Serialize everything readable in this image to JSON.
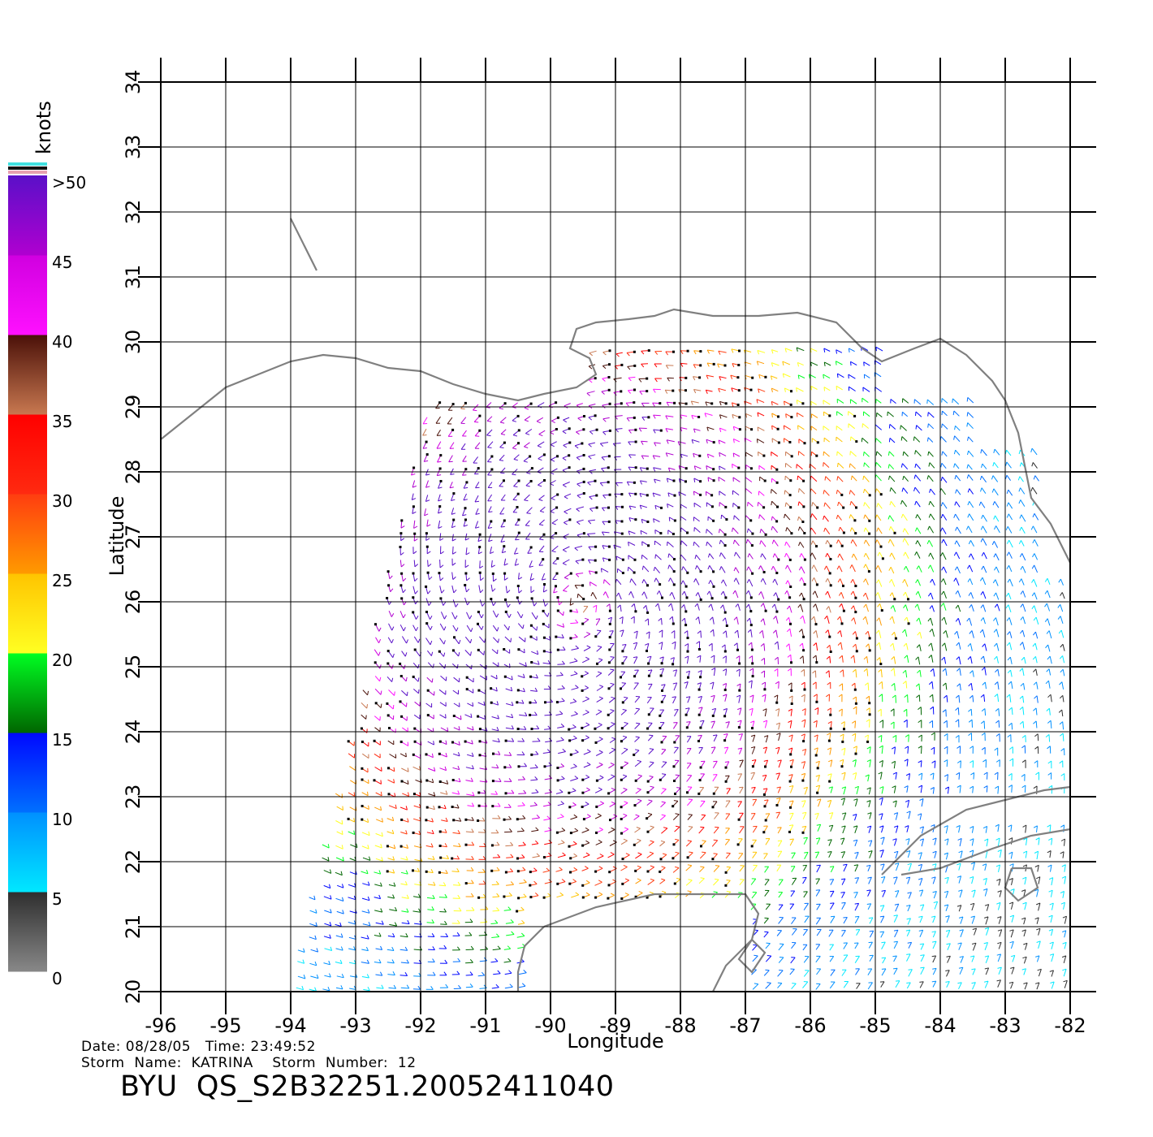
{
  "colorbar": {
    "unit_label": "knots",
    "tick_labels": [
      ">50",
      "45",
      "40",
      "35",
      "30",
      "25",
      "20",
      "15",
      "10",
      "5",
      "0"
    ],
    "bands": [
      {
        "from": 0,
        "to": 5,
        "colors": [
          "#888888",
          "#2e2e2e"
        ]
      },
      {
        "from": 5,
        "to": 10,
        "colors": [
          "#00e8ff",
          "#0090ff"
        ]
      },
      {
        "from": 10,
        "to": 15,
        "colors": [
          "#0070ff",
          "#0008ff"
        ]
      },
      {
        "from": 15,
        "to": 20,
        "colors": [
          "#006600",
          "#00ff22"
        ]
      },
      {
        "from": 20,
        "to": 25,
        "colors": [
          "#ffff22",
          "#ffc400"
        ]
      },
      {
        "from": 25,
        "to": 30,
        "colors": [
          "#ff9a00",
          "#ff3d10"
        ]
      },
      {
        "from": 30,
        "to": 35,
        "colors": [
          "#ff2a10",
          "#ff0000"
        ]
      },
      {
        "from": 35,
        "to": 40,
        "colors": [
          "#c87850",
          "#4a1008"
        ]
      },
      {
        "from": 40,
        "to": 45,
        "colors": [
          "#ff10ff",
          "#d000e0"
        ]
      },
      {
        "from": 45,
        "to": 50,
        "colors": [
          "#b000d0",
          "#5a10c8"
        ]
      }
    ],
    "top_stripes": [
      "#40e0e0",
      "#111111",
      "#e8a0b0"
    ]
  },
  "map": {
    "x_axis_label": "Longitude",
    "y_axis_label": "Latitude",
    "x_ticks": [
      "-96",
      "-95",
      "-94",
      "-93",
      "-92",
      "-91",
      "-90",
      "-89",
      "-88",
      "-87",
      "-86",
      "-85",
      "-84",
      "-83",
      "-82"
    ],
    "y_ticks": [
      "20",
      "21",
      "22",
      "23",
      "24",
      "25",
      "26",
      "27",
      "28",
      "29",
      "30",
      "31",
      "32",
      "33",
      "34"
    ],
    "lon_range": [
      -96,
      -82
    ],
    "lat_range": [
      20,
      34
    ],
    "coastline_color": "#808080",
    "grid_color": "#000000",
    "storm_center": {
      "lon": -89.6,
      "lat": 26.0
    },
    "coastlines": [
      [
        [
          -96,
          28.5
        ],
        [
          -95.5,
          28.9
        ],
        [
          -95,
          29.3
        ],
        [
          -94.5,
          29.5
        ],
        [
          -94,
          29.7
        ],
        [
          -93.5,
          29.8
        ],
        [
          -93,
          29.75
        ],
        [
          -92.5,
          29.6
        ],
        [
          -92,
          29.55
        ],
        [
          -91.5,
          29.35
        ],
        [
          -91,
          29.2
        ],
        [
          -90.5,
          29.1
        ],
        [
          -90.1,
          29.2
        ],
        [
          -89.6,
          29.3
        ],
        [
          -89.3,
          29.5
        ],
        [
          -89.4,
          29.75
        ],
        [
          -89.7,
          29.9
        ],
        [
          -89.6,
          30.2
        ],
        [
          -89.3,
          30.3
        ],
        [
          -88.8,
          30.35
        ],
        [
          -88.4,
          30.4
        ],
        [
          -88.1,
          30.5
        ],
        [
          -87.5,
          30.4
        ],
        [
          -86.8,
          30.4
        ],
        [
          -86.2,
          30.45
        ],
        [
          -85.6,
          30.3
        ],
        [
          -85.2,
          29.9
        ],
        [
          -84.9,
          29.7
        ],
        [
          -84.4,
          29.9
        ],
        [
          -84,
          30.05
        ],
        [
          -83.6,
          29.8
        ],
        [
          -83.2,
          29.4
        ],
        [
          -83,
          29.1
        ],
        [
          -82.8,
          28.6
        ],
        [
          -82.7,
          28.1
        ],
        [
          -82.6,
          27.6
        ],
        [
          -82.3,
          27.2
        ],
        [
          -82.05,
          26.7
        ],
        [
          -82,
          26.6
        ]
      ],
      [
        [
          -94,
          31.9
        ],
        [
          -93.8,
          31.5
        ],
        [
          -93.6,
          31.1
        ]
      ],
      [
        [
          -90.1,
          21.0
        ],
        [
          -90.4,
          20.7
        ],
        [
          -90.5,
          20.3
        ],
        [
          -90.5,
          20.0
        ]
      ],
      [
        [
          -90.1,
          21.0
        ],
        [
          -89.3,
          21.3
        ],
        [
          -88.4,
          21.5
        ],
        [
          -87.6,
          21.5
        ],
        [
          -87.0,
          21.5
        ],
        [
          -86.8,
          21.2
        ],
        [
          -86.9,
          20.8
        ],
        [
          -87.3,
          20.4
        ],
        [
          -87.5,
          20.0
        ]
      ],
      [
        [
          -84.9,
          21.8
        ],
        [
          -84.3,
          22.4
        ],
        [
          -83.6,
          22.8
        ],
        [
          -83.0,
          22.95
        ],
        [
          -82.4,
          23.1
        ],
        [
          -82.0,
          23.15
        ]
      ],
      [
        [
          -84.6,
          21.8
        ],
        [
          -84.0,
          21.9
        ],
        [
          -83.2,
          22.2
        ],
        [
          -82.6,
          22.4
        ],
        [
          -82.0,
          22.5
        ]
      ],
      [
        [
          -82.9,
          21.9
        ],
        [
          -82.6,
          21.9
        ],
        [
          -82.5,
          21.6
        ],
        [
          -82.8,
          21.4
        ],
        [
          -83.0,
          21.6
        ],
        [
          -82.9,
          21.9
        ]
      ],
      [
        [
          -86.9,
          20.8
        ],
        [
          -86.7,
          20.6
        ],
        [
          -86.9,
          20.3
        ],
        [
          -87.1,
          20.5
        ],
        [
          -86.9,
          20.8
        ]
      ]
    ]
  },
  "footer": {
    "date_line": "Date: 08/28/05   Time: 23:49:52",
    "storm_line": "Storm  Name:  KATRINA    Storm  Number:  12",
    "product_id": "BYU  QS_S2B32251.20052411040"
  }
}
